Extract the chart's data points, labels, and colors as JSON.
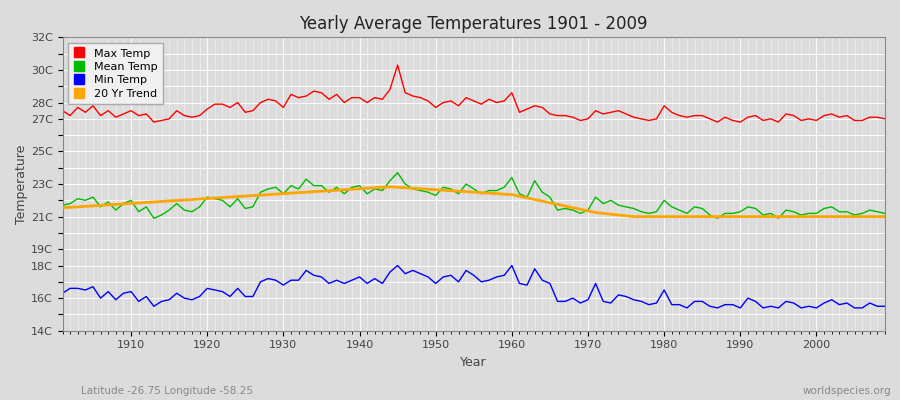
{
  "title": "Yearly Average Temperatures 1901 - 2009",
  "xlabel": "Year",
  "ylabel": "Temperature",
  "lat_lon_label": "Latitude -26.75 Longitude -58.25",
  "watermark": "worldspecies.org",
  "year_start": 1901,
  "year_end": 2009,
  "background_color": "#dcdcdc",
  "plot_bg_color": "#dcdcdc",
  "grid_color": "#ffffff",
  "max_temp": [
    27.5,
    27.2,
    27.7,
    27.4,
    27.8,
    27.2,
    27.5,
    27.1,
    27.3,
    27.5,
    27.2,
    27.3,
    26.8,
    26.9,
    27.0,
    27.5,
    27.2,
    27.1,
    27.2,
    27.6,
    27.9,
    27.9,
    27.7,
    28.0,
    27.4,
    27.5,
    28.0,
    28.2,
    28.1,
    27.7,
    28.5,
    28.3,
    28.4,
    28.7,
    28.6,
    28.2,
    28.5,
    28.0,
    28.3,
    28.3,
    28.0,
    28.3,
    28.2,
    28.8,
    30.3,
    28.6,
    28.4,
    28.3,
    28.1,
    27.7,
    28.0,
    28.1,
    27.8,
    28.3,
    28.1,
    27.9,
    28.2,
    28.0,
    28.1,
    28.6,
    27.4,
    27.6,
    27.8,
    27.7,
    27.3,
    27.2,
    27.2,
    27.1,
    26.9,
    27.0,
    27.5,
    27.3,
    27.4,
    27.5,
    27.3,
    27.1,
    27.0,
    26.9,
    27.0,
    27.8,
    27.4,
    27.2,
    27.1,
    27.2,
    27.2,
    27.0,
    26.8,
    27.1,
    26.9,
    26.8,
    27.1,
    27.2,
    26.9,
    27.0,
    26.8,
    27.3,
    27.2,
    26.9,
    27.0,
    26.9,
    27.2,
    27.3,
    27.1,
    27.2,
    26.9,
    26.9,
    27.1,
    27.1,
    27.0
  ],
  "mean_temp": [
    21.7,
    21.8,
    22.1,
    22.0,
    22.2,
    21.6,
    21.9,
    21.4,
    21.8,
    22.0,
    21.3,
    21.6,
    20.9,
    21.1,
    21.4,
    21.8,
    21.4,
    21.3,
    21.6,
    22.2,
    22.1,
    22.0,
    21.6,
    22.1,
    21.5,
    21.6,
    22.5,
    22.7,
    22.8,
    22.4,
    22.9,
    22.7,
    23.3,
    22.9,
    22.9,
    22.5,
    22.8,
    22.4,
    22.8,
    22.9,
    22.4,
    22.7,
    22.6,
    23.2,
    23.7,
    23.0,
    22.7,
    22.6,
    22.5,
    22.3,
    22.8,
    22.7,
    22.4,
    23.0,
    22.7,
    22.4,
    22.6,
    22.6,
    22.8,
    23.4,
    22.4,
    22.2,
    23.2,
    22.5,
    22.2,
    21.4,
    21.5,
    21.4,
    21.2,
    21.4,
    22.2,
    21.8,
    22.0,
    21.7,
    21.6,
    21.5,
    21.3,
    21.2,
    21.3,
    22.0,
    21.6,
    21.4,
    21.2,
    21.6,
    21.5,
    21.1,
    20.9,
    21.2,
    21.2,
    21.3,
    21.6,
    21.5,
    21.1,
    21.2,
    20.9,
    21.4,
    21.3,
    21.1,
    21.2,
    21.2,
    21.5,
    21.6,
    21.3,
    21.3,
    21.1,
    21.2,
    21.4,
    21.3,
    21.2
  ],
  "min_temp": [
    16.3,
    16.6,
    16.6,
    16.5,
    16.7,
    16.0,
    16.4,
    15.9,
    16.3,
    16.4,
    15.8,
    16.1,
    15.5,
    15.8,
    15.9,
    16.3,
    16.0,
    15.9,
    16.1,
    16.6,
    16.5,
    16.4,
    16.1,
    16.6,
    16.1,
    16.1,
    17.0,
    17.2,
    17.1,
    16.8,
    17.1,
    17.1,
    17.7,
    17.4,
    17.3,
    16.9,
    17.1,
    16.9,
    17.1,
    17.3,
    16.9,
    17.2,
    16.9,
    17.6,
    18.0,
    17.5,
    17.7,
    17.5,
    17.3,
    16.9,
    17.3,
    17.4,
    17.0,
    17.7,
    17.4,
    17.0,
    17.1,
    17.3,
    17.4,
    18.0,
    16.9,
    16.8,
    17.8,
    17.1,
    16.9,
    15.8,
    15.8,
    16.0,
    15.7,
    15.9,
    16.9,
    15.8,
    15.7,
    16.2,
    16.1,
    15.9,
    15.8,
    15.6,
    15.7,
    16.5,
    15.6,
    15.6,
    15.4,
    15.8,
    15.8,
    15.5,
    15.4,
    15.6,
    15.6,
    15.4,
    16.0,
    15.8,
    15.4,
    15.5,
    15.4,
    15.8,
    15.7,
    15.4,
    15.5,
    15.4,
    15.7,
    15.9,
    15.6,
    15.7,
    15.4,
    15.4,
    15.7,
    15.5,
    15.5
  ],
  "trend_20yr": [
    21.55,
    21.57,
    21.6,
    21.63,
    21.66,
    21.69,
    21.72,
    21.75,
    21.78,
    21.81,
    21.84,
    21.87,
    21.9,
    21.93,
    21.96,
    21.99,
    22.02,
    22.05,
    22.08,
    22.11,
    22.14,
    22.17,
    22.2,
    22.23,
    22.26,
    22.29,
    22.32,
    22.35,
    22.38,
    22.41,
    22.44,
    22.47,
    22.5,
    22.53,
    22.56,
    22.59,
    22.62,
    22.65,
    22.68,
    22.71,
    22.74,
    22.77,
    22.8,
    22.83,
    22.8,
    22.77,
    22.74,
    22.71,
    22.68,
    22.65,
    22.62,
    22.59,
    22.56,
    22.53,
    22.5,
    22.47,
    22.44,
    22.41,
    22.38,
    22.35,
    22.25,
    22.15,
    22.05,
    21.95,
    21.85,
    21.75,
    21.65,
    21.55,
    21.45,
    21.35,
    21.25,
    21.2,
    21.15,
    21.1,
    21.05,
    21.0,
    21.0,
    21.0,
    21.0,
    21.0,
    21.0,
    21.0,
    21.0,
    21.0,
    21.0,
    21.0,
    21.0,
    21.0,
    21.0,
    21.0,
    21.0,
    21.0,
    21.0,
    21.0,
    21.0,
    21.0,
    21.0,
    21.0,
    21.0,
    21.0,
    21.0,
    21.0,
    21.0,
    21.0,
    21.0,
    21.0,
    21.0,
    21.0,
    21.0
  ],
  "line_colors": {
    "max": "#ff0000",
    "mean": "#00bb00",
    "min": "#0000ff",
    "trend": "#ffa500"
  },
  "line_widths": {
    "max": 1.0,
    "mean": 1.0,
    "min": 1.0,
    "trend": 2.0
  },
  "ylim": [
    14,
    32
  ],
  "xlim": [
    1901,
    2009
  ]
}
